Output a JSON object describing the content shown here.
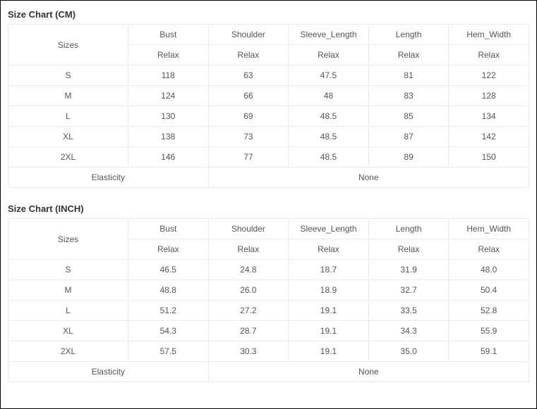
{
  "charts": [
    {
      "title": "Size Chart (CM)",
      "sizes_label": "Sizes",
      "measurements": [
        "Bust",
        "Shoulder",
        "Sleeve_Length",
        "Length",
        "Hem_Width"
      ],
      "subheader": [
        "Relax",
        "Relax",
        "Relax",
        "Relax",
        "Relax"
      ],
      "rows": [
        {
          "size": "S",
          "vals": [
            "118",
            "63",
            "47.5",
            "81",
            "122"
          ]
        },
        {
          "size": "M",
          "vals": [
            "124",
            "66",
            "48",
            "83",
            "128"
          ]
        },
        {
          "size": "L",
          "vals": [
            "130",
            "69",
            "48.5",
            "85",
            "134"
          ]
        },
        {
          "size": "XL",
          "vals": [
            "138",
            "73",
            "48.5",
            "87",
            "142"
          ]
        },
        {
          "size": "2XL",
          "vals": [
            "146",
            "77",
            "48.5",
            "89",
            "150"
          ]
        }
      ],
      "footer_label": "Elasticity",
      "footer_value": "None"
    },
    {
      "title": "Size Chart (INCH)",
      "sizes_label": "Sizes",
      "measurements": [
        "Bust",
        "Shoulder",
        "Sleeve_Length",
        "Length",
        "Hem_Width"
      ],
      "subheader": [
        "Relax",
        "Relax",
        "Relax",
        "Relax",
        "Relax"
      ],
      "rows": [
        {
          "size": "S",
          "vals": [
            "46.5",
            "24.8",
            "18.7",
            "31.9",
            "48.0"
          ]
        },
        {
          "size": "M",
          "vals": [
            "48.8",
            "26.0",
            "18.9",
            "32.7",
            "50.4"
          ]
        },
        {
          "size": "L",
          "vals": [
            "51.2",
            "27.2",
            "19.1",
            "33.5",
            "52.8"
          ]
        },
        {
          "size": "XL",
          "vals": [
            "54.3",
            "28.7",
            "19.1",
            "34.3",
            "55.9"
          ]
        },
        {
          "size": "2XL",
          "vals": [
            "57.5",
            "30.3",
            "19.1",
            "35.0",
            "59.1"
          ]
        }
      ],
      "footer_label": "Elasticity",
      "footer_value": "None"
    }
  ],
  "styling": {
    "border_color": "#ebebeb",
    "text_color": "#555555",
    "title_color": "#333333",
    "background_color": "#ffffff",
    "fontsize_title": 13,
    "fontsize_cell": 12
  }
}
